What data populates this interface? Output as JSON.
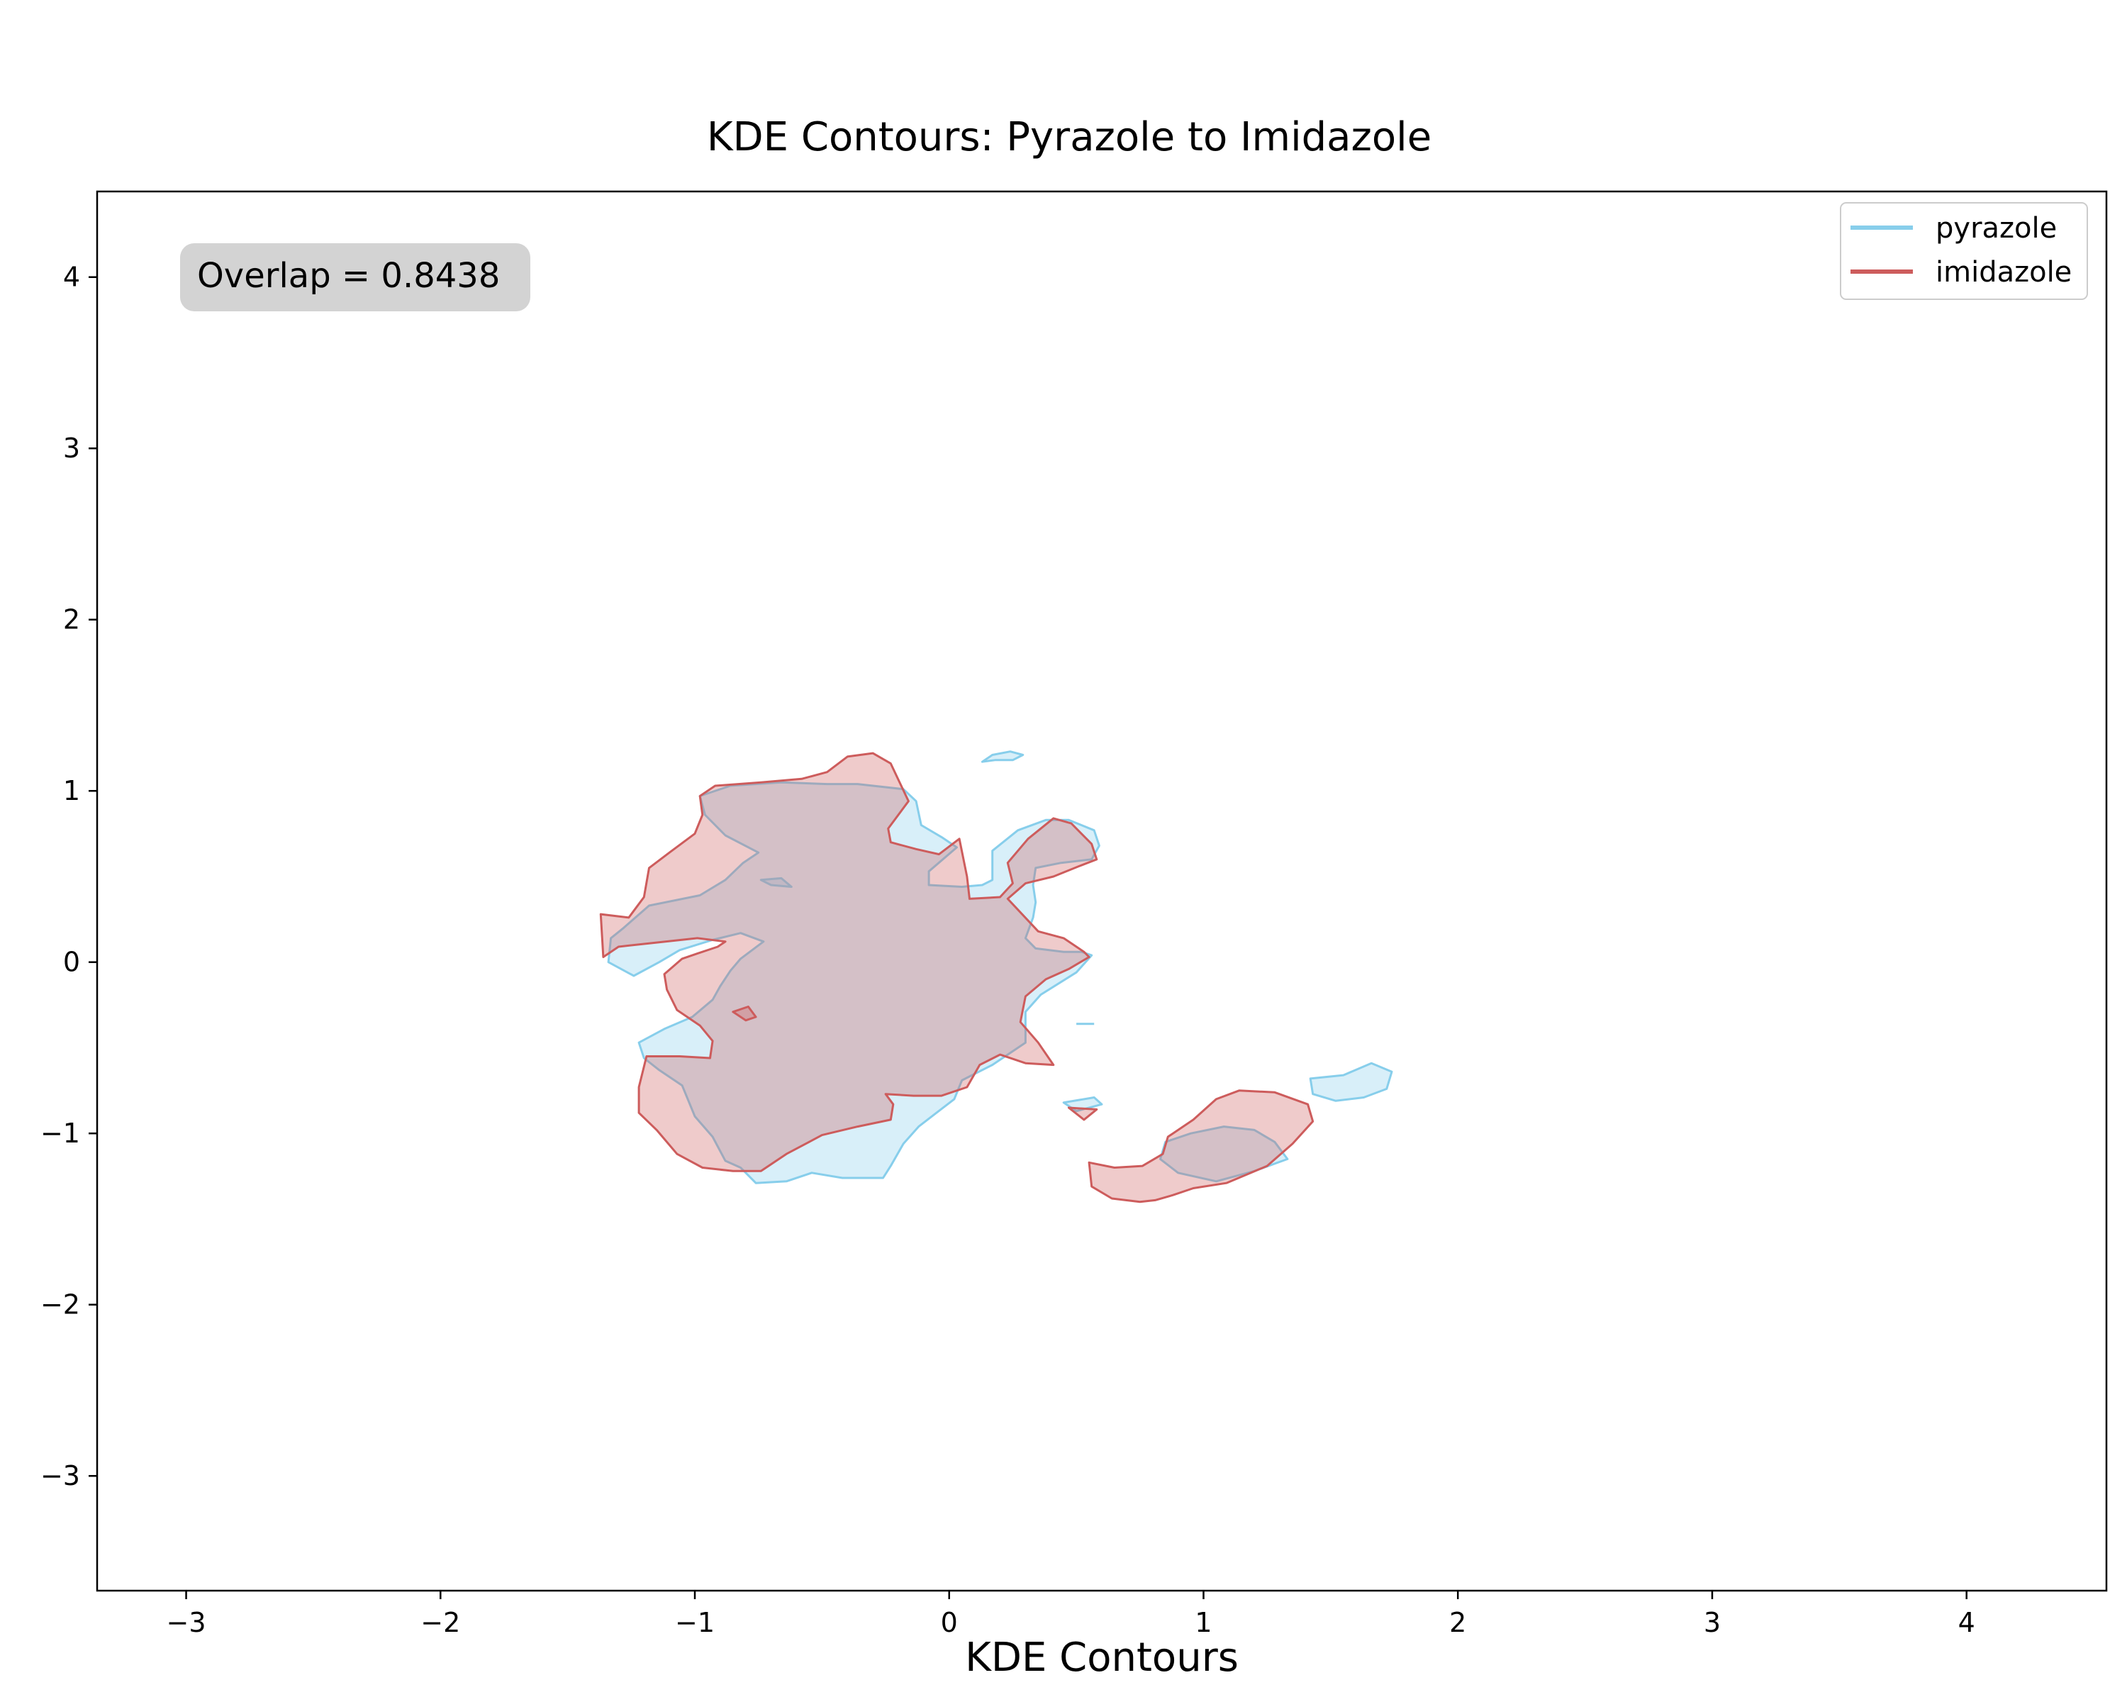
{
  "chart_data": {
    "type": "contour",
    "title": "KDE Contours: Pyrazole to Imidazole",
    "xlabel": "KDE Contours",
    "ylabel": "",
    "xlim": [
      -3.35,
      4.55
    ],
    "ylim": [
      -3.67,
      4.5
    ],
    "xticks": [
      -3,
      -2,
      -1,
      0,
      1,
      2,
      3,
      4
    ],
    "yticks": [
      -3,
      -2,
      -1,
      0,
      1,
      2,
      3,
      4
    ],
    "xtick_labels": [
      "−3",
      "−2",
      "−1",
      "0",
      "1",
      "2",
      "3",
      "4"
    ],
    "ytick_labels": [
      "−3",
      "−2",
      "−1",
      "0",
      "1",
      "2",
      "3",
      "4"
    ],
    "grid": false,
    "legend_position": "top-right",
    "annotation": {
      "text": "Overlap = 0.8438",
      "position": "top-left"
    },
    "series": [
      {
        "name": "pyrazole",
        "color": "#87ceeb",
        "regions": [
          [
            [
              -1.28,
              0.2
            ],
            [
              -1.18,
              0.33
            ],
            [
              -0.98,
              0.39
            ],
            [
              -0.88,
              0.48
            ],
            [
              -0.81,
              0.58
            ],
            [
              -0.75,
              0.64
            ],
            [
              -0.88,
              0.74
            ],
            [
              -0.96,
              0.86
            ],
            [
              -0.98,
              0.97
            ],
            [
              -0.86,
              1.03
            ],
            [
              -0.66,
              1.05
            ],
            [
              -0.48,
              1.04
            ],
            [
              -0.36,
              1.04
            ],
            [
              -0.18,
              1.01
            ],
            [
              -0.13,
              0.94
            ],
            [
              -0.11,
              0.8
            ],
            [
              -0.03,
              0.73
            ],
            [
              0.03,
              0.67
            ],
            [
              -0.08,
              0.53
            ],
            [
              -0.08,
              0.45
            ],
            [
              0.05,
              0.44
            ],
            [
              0.13,
              0.45
            ],
            [
              0.17,
              0.48
            ],
            [
              0.17,
              0.65
            ],
            [
              0.27,
              0.77
            ],
            [
              0.38,
              0.83
            ],
            [
              0.47,
              0.83
            ],
            [
              0.57,
              0.77
            ],
            [
              0.59,
              0.68
            ],
            [
              0.56,
              0.6
            ],
            [
              0.44,
              0.58
            ],
            [
              0.34,
              0.55
            ],
            [
              0.33,
              0.45
            ],
            [
              0.34,
              0.35
            ],
            [
              0.33,
              0.26
            ],
            [
              0.3,
              0.14
            ],
            [
              0.34,
              0.08
            ],
            [
              0.45,
              0.06
            ],
            [
              0.52,
              0.06
            ],
            [
              0.56,
              0.04
            ],
            [
              0.5,
              -0.06
            ],
            [
              0.36,
              -0.19
            ],
            [
              0.3,
              -0.29
            ],
            [
              0.3,
              -0.47
            ],
            [
              0.17,
              -0.6
            ],
            [
              0.05,
              -0.69
            ],
            [
              0.02,
              -0.8
            ],
            [
              -0.05,
              -0.88
            ],
            [
              -0.12,
              -0.96
            ],
            [
              -0.18,
              -1.06
            ],
            [
              -0.23,
              -1.19
            ],
            [
              -0.26,
              -1.26
            ],
            [
              -0.42,
              -1.26
            ],
            [
              -0.54,
              -1.23
            ],
            [
              -0.64,
              -1.28
            ],
            [
              -0.76,
              -1.29
            ],
            [
              -0.82,
              -1.2
            ],
            [
              -0.88,
              -1.16
            ],
            [
              -0.93,
              -1.02
            ],
            [
              -1.0,
              -0.9
            ],
            [
              -1.05,
              -0.72
            ],
            [
              -1.14,
              -0.63
            ],
            [
              -1.2,
              -0.56
            ],
            [
              -1.22,
              -0.47
            ],
            [
              -1.12,
              -0.39
            ],
            [
              -1.01,
              -0.32
            ],
            [
              -0.93,
              -0.22
            ],
            [
              -0.9,
              -0.14
            ],
            [
              -0.86,
              -0.05
            ],
            [
              -0.82,
              0.02
            ],
            [
              -0.73,
              0.12
            ],
            [
              -0.82,
              0.17
            ],
            [
              -0.93,
              0.13
            ],
            [
              -1.06,
              0.07
            ],
            [
              -1.14,
              0.0
            ],
            [
              -1.24,
              -0.08
            ],
            [
              -1.34,
              0.0
            ],
            [
              -1.33,
              0.14
            ]
          ],
          [
            [
              0.17,
              1.21
            ],
            [
              0.24,
              1.23
            ],
            [
              0.29,
              1.21
            ],
            [
              0.25,
              1.18
            ],
            [
              0.18,
              1.18
            ],
            [
              0.13,
              1.17
            ]
          ],
          [
            [
              0.45,
              -0.82
            ],
            [
              0.57,
              -0.79
            ],
            [
              0.6,
              -0.83
            ],
            [
              0.5,
              -0.87
            ]
          ],
          [
            [
              0.85,
              -1.05
            ],
            [
              0.95,
              -1.0
            ],
            [
              1.08,
              -0.96
            ],
            [
              1.2,
              -0.98
            ],
            [
              1.28,
              -1.05
            ],
            [
              1.33,
              -1.15
            ],
            [
              1.2,
              -1.22
            ],
            [
              1.05,
              -1.28
            ],
            [
              0.9,
              -1.23
            ],
            [
              0.83,
              -1.15
            ]
          ],
          [
            [
              1.42,
              -0.68
            ],
            [
              1.55,
              -0.66
            ],
            [
              1.66,
              -0.59
            ],
            [
              1.74,
              -0.64
            ],
            [
              1.72,
              -0.74
            ],
            [
              1.63,
              -0.79
            ],
            [
              1.52,
              -0.81
            ],
            [
              1.43,
              -0.77
            ]
          ],
          [
            [
              -0.74,
              0.48
            ],
            [
              -0.66,
              0.49
            ],
            [
              -0.62,
              0.44
            ],
            [
              -0.7,
              0.45
            ]
          ],
          [
            [
              0.5,
              -0.36
            ],
            [
              0.57,
              -0.36
            ]
          ]
        ]
      },
      {
        "name": "imidazole",
        "color": "#cd5c5c",
        "regions": [
          [
            [
              -1.37,
              0.28
            ],
            [
              -1.26,
              0.26
            ],
            [
              -1.2,
              0.38
            ],
            [
              -1.18,
              0.55
            ],
            [
              -1.1,
              0.64
            ],
            [
              -1.0,
              0.75
            ],
            [
              -0.97,
              0.86
            ],
            [
              -0.98,
              0.97
            ],
            [
              -0.92,
              1.03
            ],
            [
              -0.74,
              1.05
            ],
            [
              -0.58,
              1.07
            ],
            [
              -0.48,
              1.11
            ],
            [
              -0.4,
              1.2
            ],
            [
              -0.3,
              1.22
            ],
            [
              -0.23,
              1.16
            ],
            [
              -0.16,
              0.94
            ],
            [
              -0.24,
              0.78
            ],
            [
              -0.23,
              0.7
            ],
            [
              -0.13,
              0.66
            ],
            [
              -0.04,
              0.63
            ],
            [
              0.04,
              0.72
            ],
            [
              0.07,
              0.5
            ],
            [
              0.08,
              0.37
            ],
            [
              0.2,
              0.38
            ],
            [
              0.25,
              0.46
            ],
            [
              0.23,
              0.58
            ],
            [
              0.31,
              0.72
            ],
            [
              0.41,
              0.84
            ],
            [
              0.48,
              0.81
            ],
            [
              0.56,
              0.69
            ],
            [
              0.58,
              0.6
            ],
            [
              0.51,
              0.56
            ],
            [
              0.41,
              0.5
            ],
            [
              0.3,
              0.46
            ],
            [
              0.23,
              0.37
            ],
            [
              0.35,
              0.18
            ],
            [
              0.45,
              0.14
            ],
            [
              0.53,
              0.06
            ],
            [
              0.55,
              0.03
            ],
            [
              0.47,
              -0.04
            ],
            [
              0.38,
              -0.1
            ],
            [
              0.3,
              -0.2
            ],
            [
              0.28,
              -0.35
            ],
            [
              0.35,
              -0.47
            ],
            [
              0.41,
              -0.6
            ],
            [
              0.3,
              -0.59
            ],
            [
              0.2,
              -0.54
            ],
            [
              0.12,
              -0.6
            ],
            [
              0.07,
              -0.73
            ],
            [
              -0.03,
              -0.78
            ],
            [
              -0.14,
              -0.78
            ],
            [
              -0.25,
              -0.77
            ],
            [
              -0.22,
              -0.83
            ],
            [
              -0.23,
              -0.92
            ],
            [
              -0.36,
              -0.96
            ],
            [
              -0.5,
              -1.01
            ],
            [
              -0.64,
              -1.12
            ],
            [
              -0.74,
              -1.22
            ],
            [
              -0.85,
              -1.22
            ],
            [
              -0.97,
              -1.2
            ],
            [
              -1.07,
              -1.12
            ],
            [
              -1.15,
              -0.98
            ],
            [
              -1.22,
              -0.88
            ],
            [
              -1.22,
              -0.73
            ],
            [
              -1.19,
              -0.55
            ],
            [
              -1.06,
              -0.55
            ],
            [
              -0.94,
              -0.56
            ],
            [
              -0.93,
              -0.46
            ],
            [
              -0.98,
              -0.37
            ],
            [
              -1.07,
              -0.28
            ],
            [
              -1.11,
              -0.16
            ],
            [
              -1.12,
              -0.07
            ],
            [
              -1.05,
              0.02
            ],
            [
              -0.99,
              0.05
            ],
            [
              -0.91,
              0.09
            ],
            [
              -0.88,
              0.12
            ],
            [
              -0.99,
              0.14
            ],
            [
              -1.18,
              0.11
            ],
            [
              -1.3,
              0.09
            ],
            [
              -1.36,
              0.03
            ]
          ],
          [
            [
              0.55,
              -1.17
            ],
            [
              0.65,
              -1.2
            ],
            [
              0.76,
              -1.19
            ],
            [
              0.84,
              -1.12
            ],
            [
              0.86,
              -1.02
            ],
            [
              0.96,
              -0.92
            ],
            [
              1.05,
              -0.8
            ],
            [
              1.14,
              -0.75
            ],
            [
              1.28,
              -0.76
            ],
            [
              1.41,
              -0.83
            ],
            [
              1.43,
              -0.93
            ],
            [
              1.35,
              -1.06
            ],
            [
              1.25,
              -1.19
            ],
            [
              1.09,
              -1.29
            ],
            [
              0.96,
              -1.32
            ],
            [
              0.88,
              -1.36
            ],
            [
              0.81,
              -1.39
            ],
            [
              0.75,
              -1.4
            ],
            [
              0.64,
              -1.38
            ],
            [
              0.56,
              -1.31
            ]
          ],
          [
            [
              -0.85,
              -0.29
            ],
            [
              -0.79,
              -0.26
            ],
            [
              -0.76,
              -0.32
            ],
            [
              -0.8,
              -0.34
            ]
          ],
          [
            [
              0.47,
              -0.85
            ],
            [
              0.53,
              -0.92
            ],
            [
              0.58,
              -0.86
            ]
          ]
        ]
      }
    ]
  }
}
